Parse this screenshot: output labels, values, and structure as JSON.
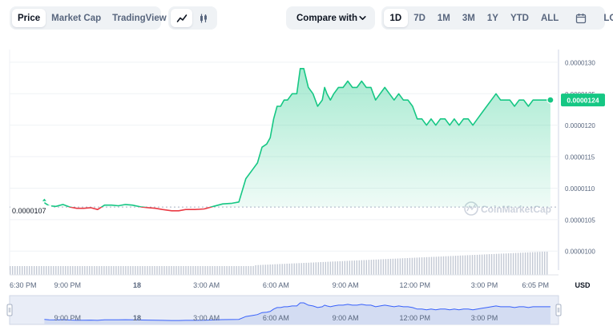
{
  "toolbar": {
    "type_tabs": [
      {
        "label": "Price",
        "active": true
      },
      {
        "label": "Market Cap",
        "active": false
      },
      {
        "label": "TradingView",
        "active": false
      }
    ],
    "chart_type_icons": [
      {
        "icon": "line-chart-icon",
        "active": true
      },
      {
        "icon": "candlestick-icon",
        "active": false
      }
    ],
    "compare_label": "Compare with",
    "compare_icon": "chevron-down-icon",
    "ranges": [
      {
        "label": "1D",
        "active": true
      },
      {
        "label": "7D",
        "active": false
      },
      {
        "label": "1M",
        "active": false
      },
      {
        "label": "3M",
        "active": false
      },
      {
        "label": "1Y",
        "active": false
      },
      {
        "label": "YTD",
        "active": false
      },
      {
        "label": "ALL",
        "active": false
      }
    ],
    "calendar_icon": "calendar-icon",
    "log_label": "LOG"
  },
  "chart_data": {
    "type": "area",
    "ylim": [
      9.8e-06,
      1.31e-05
    ],
    "y_ticks": [
      "0.0000130",
      "0.0000125",
      "0.0000120",
      "0.0000115",
      "0.0000110",
      "0.0000105",
      "0.0000100"
    ],
    "y_tick_values": [
      1.3e-05,
      1.25e-05,
      1.2e-05,
      1.15e-05,
      1.1e-05,
      1.05e-05,
      1e-05
    ],
    "x_ticks": [
      "6:30 PM",
      "9:00 PM",
      "18",
      "3:00 AM",
      "6:00 AM",
      "9:00 AM",
      "12:00 PM",
      "3:00 PM",
      "6:05 PM"
    ],
    "x_tick_hours": [
      0,
      2.5,
      5.5,
      8.5,
      11.5,
      14.5,
      17.5,
      20.5,
      23.58
    ],
    "y_unit": "USD",
    "reference_price": 1.07e-05,
    "reference_label": "0.0000107",
    "current_price": 1.24e-05,
    "current_label": "0.0000124",
    "up_color": "#16c784",
    "down_color": "#ea3943",
    "watermark": "CoinMarketCap",
    "series": [
      {
        "hours": [
          1.5,
          1.7,
          2.0,
          2.3,
          2.6,
          2.9,
          3.2,
          3.5,
          3.8,
          4.1,
          4.4,
          4.7,
          5.0,
          5.3,
          5.7,
          6.0,
          6.3,
          6.6,
          7.0,
          7.3,
          7.6,
          8.0,
          8.4,
          8.8,
          9.2,
          9.6,
          9.9,
          10.2,
          10.5,
          10.7,
          10.9,
          11.1,
          11.25,
          11.4,
          11.55,
          11.7,
          11.85,
          12.0,
          12.2,
          12.4,
          12.55,
          12.7,
          12.9,
          13.1,
          13.3,
          13.5,
          13.6,
          13.7,
          13.85,
          14.0,
          14.2,
          14.4,
          14.6,
          14.8,
          15.0,
          15.2,
          15.4,
          15.6,
          15.8,
          16.0,
          16.2,
          16.4,
          16.6,
          16.8,
          17.0,
          17.2,
          17.4,
          17.6,
          17.8,
          18.0,
          18.2,
          18.4,
          18.6,
          18.8,
          19.0,
          19.2,
          19.4,
          19.6,
          19.8,
          20.0,
          20.2,
          20.4,
          20.6,
          20.8,
          21.0,
          21.2,
          21.4,
          21.6,
          21.8,
          22.0,
          22.2,
          22.4,
          22.6,
          22.8,
          23.0,
          23.2,
          23.35
        ],
        "values": [
          1.077e-05,
          1.072e-05,
          1.071e-05,
          1.074e-05,
          1.07e-05,
          1.068e-05,
          1.068e-05,
          1.069e-05,
          1.066e-05,
          1.073e-05,
          1.073e-05,
          1.072e-05,
          1.074e-05,
          1.073e-05,
          1.07e-05,
          1.069e-05,
          1.068e-05,
          1.066e-05,
          1.064e-05,
          1.064e-05,
          1.066e-05,
          1.066e-05,
          1.067e-05,
          1.071e-05,
          1.075e-05,
          1.076e-05,
          1.078e-05,
          1.115e-05,
          1.13e-05,
          1.14e-05,
          1.165e-05,
          1.17e-05,
          1.18e-05,
          1.21e-05,
          1.23e-05,
          1.23e-05,
          1.24e-05,
          1.24e-05,
          1.25e-05,
          1.25e-05,
          1.29e-05,
          1.29e-05,
          1.26e-05,
          1.25e-05,
          1.23e-05,
          1.24e-05,
          1.26e-05,
          1.25e-05,
          1.24e-05,
          1.25e-05,
          1.26e-05,
          1.26e-05,
          1.27e-05,
          1.26e-05,
          1.26e-05,
          1.27e-05,
          1.26e-05,
          1.26e-05,
          1.24e-05,
          1.25e-05,
          1.26e-05,
          1.25e-05,
          1.24e-05,
          1.25e-05,
          1.24e-05,
          1.24e-05,
          1.23e-05,
          1.21e-05,
          1.21e-05,
          1.2e-05,
          1.21e-05,
          1.2e-05,
          1.21e-05,
          1.21e-05,
          1.2e-05,
          1.21e-05,
          1.2e-05,
          1.21e-05,
          1.21e-05,
          1.2e-05,
          1.21e-05,
          1.22e-05,
          1.23e-05,
          1.24e-05,
          1.25e-05,
          1.24e-05,
          1.24e-05,
          1.24e-05,
          1.23e-05,
          1.24e-05,
          1.24e-05,
          1.23e-05,
          1.24e-05,
          1.24e-05,
          1.24e-05,
          1.24e-05,
          1.24e-05
        ]
      }
    ],
    "navigator": {
      "x_ticks": [
        "9:00 PM",
        "18",
        "3:00 AM",
        "6:00 AM",
        "9:00 AM",
        "12:00 PM",
        "3:00 PM"
      ],
      "x_tick_hours": [
        2.5,
        5.5,
        8.5,
        11.5,
        14.5,
        17.5,
        20.5
      ]
    }
  }
}
